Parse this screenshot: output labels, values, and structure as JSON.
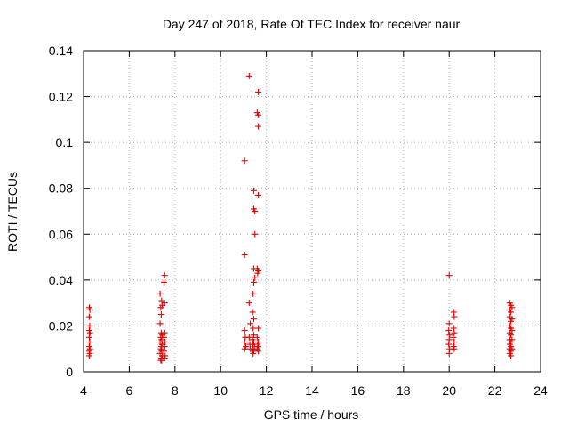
{
  "chart_data": {
    "type": "scatter",
    "title": "Day 247 of 2018, Rate Of TEC Index for receiver naur",
    "xlabel": "GPS time / hours",
    "ylabel": "ROTI / TECUs",
    "xlim": [
      4,
      24
    ],
    "ylim": [
      0,
      0.14
    ],
    "xticks": [
      "4",
      "6",
      "8",
      "10",
      "12",
      "14",
      "16",
      "18",
      "20",
      "22",
      "24"
    ],
    "yticks": [
      "0",
      "0.02",
      "0.04",
      "0.06",
      "0.08",
      "0.1",
      "0.12",
      "0.14"
    ],
    "grid": true,
    "marker": "+",
    "series": [
      {
        "color": "#e00000",
        "points": [
          [
            4.25,
            0.028
          ],
          [
            4.28,
            0.027
          ],
          [
            4.25,
            0.024
          ],
          [
            4.27,
            0.02
          ],
          [
            4.25,
            0.018
          ],
          [
            4.28,
            0.017
          ],
          [
            4.25,
            0.015
          ],
          [
            4.27,
            0.013
          ],
          [
            4.25,
            0.011
          ],
          [
            4.28,
            0.01
          ],
          [
            4.25,
            0.009
          ],
          [
            4.27,
            0.008
          ],
          [
            4.25,
            0.007
          ],
          [
            7.35,
            0.034
          ],
          [
            7.42,
            0.031
          ],
          [
            7.45,
            0.029
          ],
          [
            7.38,
            0.028
          ],
          [
            7.4,
            0.025
          ],
          [
            7.35,
            0.021
          ],
          [
            7.4,
            0.017
          ],
          [
            7.45,
            0.016
          ],
          [
            7.38,
            0.015
          ],
          [
            7.42,
            0.014
          ],
          [
            7.35,
            0.013
          ],
          [
            7.45,
            0.012
          ],
          [
            7.4,
            0.011
          ],
          [
            7.38,
            0.01
          ],
          [
            7.42,
            0.009
          ],
          [
            7.35,
            0.008
          ],
          [
            7.45,
            0.007
          ],
          [
            7.4,
            0.006
          ],
          [
            7.38,
            0.005
          ],
          [
            7.42,
            0.005
          ],
          [
            7.55,
            0.042
          ],
          [
            7.52,
            0.039
          ],
          [
            7.55,
            0.03
          ],
          [
            7.55,
            0.017
          ],
          [
            7.52,
            0.015
          ],
          [
            7.57,
            0.013
          ],
          [
            7.55,
            0.011
          ],
          [
            7.52,
            0.009
          ],
          [
            7.57,
            0.007
          ],
          [
            7.55,
            0.006
          ],
          [
            11.05,
            0.092
          ],
          [
            11.05,
            0.051
          ],
          [
            11.05,
            0.018
          ],
          [
            11.08,
            0.015
          ],
          [
            11.05,
            0.013
          ],
          [
            11.1,
            0.011
          ],
          [
            11.05,
            0.01
          ],
          [
            11.25,
            0.129
          ],
          [
            11.25,
            0.03
          ],
          [
            11.3,
            0.021
          ],
          [
            11.25,
            0.015
          ],
          [
            11.28,
            0.012
          ],
          [
            11.3,
            0.01
          ],
          [
            11.45,
            0.079
          ],
          [
            11.45,
            0.071
          ],
          [
            11.5,
            0.07
          ],
          [
            11.5,
            0.06
          ],
          [
            11.45,
            0.045
          ],
          [
            11.5,
            0.041
          ],
          [
            11.45,
            0.039
          ],
          [
            11.42,
            0.034
          ],
          [
            11.4,
            0.026
          ],
          [
            11.45,
            0.023
          ],
          [
            11.42,
            0.019
          ],
          [
            11.45,
            0.016
          ],
          [
            11.4,
            0.014
          ],
          [
            11.45,
            0.013
          ],
          [
            11.42,
            0.012
          ],
          [
            11.48,
            0.011
          ],
          [
            11.4,
            0.01
          ],
          [
            11.45,
            0.009
          ],
          [
            11.42,
            0.008
          ],
          [
            11.65,
            0.122
          ],
          [
            11.6,
            0.113
          ],
          [
            11.65,
            0.112
          ],
          [
            11.65,
            0.107
          ],
          [
            11.65,
            0.077
          ],
          [
            11.6,
            0.045
          ],
          [
            11.65,
            0.044
          ],
          [
            11.62,
            0.043
          ],
          [
            11.65,
            0.019
          ],
          [
            11.6,
            0.015
          ],
          [
            11.65,
            0.013
          ],
          [
            11.62,
            0.012
          ],
          [
            11.65,
            0.011
          ],
          [
            11.6,
            0.01
          ],
          [
            11.65,
            0.009
          ],
          [
            20.0,
            0.042
          ],
          [
            20.0,
            0.021
          ],
          [
            19.98,
            0.018
          ],
          [
            20.02,
            0.016
          ],
          [
            20.0,
            0.014
          ],
          [
            19.98,
            0.012
          ],
          [
            20.02,
            0.01
          ],
          [
            20.0,
            0.008
          ],
          [
            20.2,
            0.026
          ],
          [
            20.22,
            0.024
          ],
          [
            20.2,
            0.019
          ],
          [
            20.22,
            0.017
          ],
          [
            20.18,
            0.015
          ],
          [
            20.22,
            0.013
          ],
          [
            20.2,
            0.011
          ],
          [
            20.22,
            0.01
          ],
          [
            22.65,
            0.03
          ],
          [
            22.7,
            0.029
          ],
          [
            22.65,
            0.027
          ],
          [
            22.7,
            0.026
          ],
          [
            22.65,
            0.024
          ],
          [
            22.7,
            0.022
          ],
          [
            22.65,
            0.02
          ],
          [
            22.7,
            0.019
          ],
          [
            22.65,
            0.017
          ],
          [
            22.7,
            0.016
          ],
          [
            22.65,
            0.014
          ],
          [
            22.7,
            0.013
          ],
          [
            22.65,
            0.012
          ],
          [
            22.7,
            0.011
          ],
          [
            22.65,
            0.01
          ],
          [
            22.7,
            0.009
          ],
          [
            22.65,
            0.008
          ],
          [
            22.7,
            0.007
          ],
          [
            22.75,
            0.028
          ],
          [
            22.75,
            0.023
          ],
          [
            22.75,
            0.018
          ],
          [
            22.75,
            0.014
          ],
          [
            22.75,
            0.01
          ]
        ]
      }
    ]
  }
}
